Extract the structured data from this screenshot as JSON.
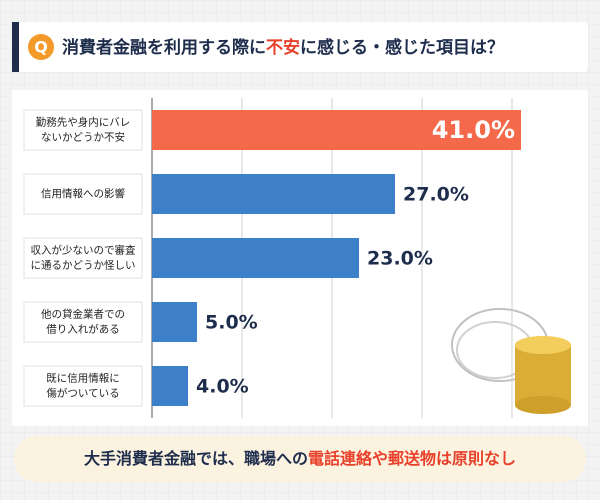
{
  "chart_data": {
    "type": "barh",
    "title": [
      {
        "text": "消費者金融を利用する際に",
        "color": "#1f2d4d"
      },
      {
        "text": "不安",
        "color": "#e8402a"
      },
      {
        "text": "に感じる・感じた項目は？",
        "color": "#1f2d4d"
      }
    ],
    "badge": "Q",
    "categories": [
      [
        "勤務先や身内にバレ",
        "ないかどうか不安"
      ],
      [
        "信用情報への影響"
      ],
      [
        "収入が少ないので審査",
        "に通るかどうか怪しい"
      ],
      [
        "他の貸金業者での",
        "借り入れがある"
      ],
      [
        "既に信用情報に",
        "傷がついている"
      ]
    ],
    "values": [
      41,
      27,
      23,
      5,
      4
    ],
    "value_labels": [
      "41.0%",
      "27.0%",
      "23.0%",
      "5.0%",
      "4.0%"
    ],
    "colors": [
      "#f4694a",
      "#3d7fc9",
      "#3d7fc9",
      "#3d7fc9",
      "#3d7fc9"
    ],
    "xlim": [
      0,
      45
    ],
    "xticks": [
      0,
      10,
      20,
      30,
      40
    ],
    "grid": true,
    "footer": [
      {
        "text": "大手消費者金融では、職場への",
        "color": "#1f2d4d"
      },
      {
        "text": "電話連絡や郵送物は原則なし",
        "color": "#e8402a"
      }
    ]
  }
}
